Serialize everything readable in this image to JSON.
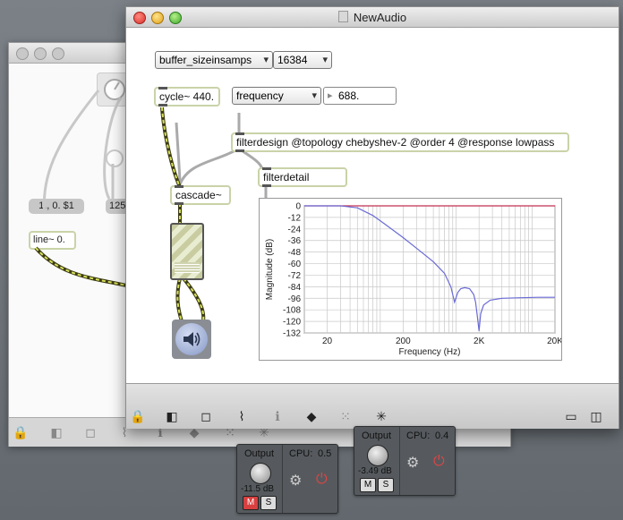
{
  "window": {
    "title": "NewAudio"
  },
  "back_patch": {
    "message_box": "1., 0. $1",
    "line_object": "line~ 0.",
    "partial_number": "125"
  },
  "objects": {
    "buffer_menu": "buffer_sizeinsamps",
    "buffer_value": "16384",
    "cycle": "cycle~ 440.",
    "freq_menu": "frequency",
    "freq_value": "688.",
    "filterdesign": "filterdesign @topology chebyshev-2 @order 4 @response lowpass",
    "filterdetail": "filterdetail",
    "cascade": "cascade~"
  },
  "chart_data": {
    "type": "line",
    "xlabel": "Frequency (Hz)",
    "ylabel": "Magnitude (dB)",
    "x_scale": "log",
    "xlim": [
      10,
      20000
    ],
    "ylim": [
      -132,
      0
    ],
    "x_ticks": [
      "20",
      "200",
      "2K",
      "20K"
    ],
    "x_tick_values": [
      20,
      200,
      2000,
      20000
    ],
    "y_ticks": [
      "0",
      "-12",
      "-24",
      "-36",
      "-48",
      "-60",
      "-72",
      "-84",
      "-96",
      "-108",
      "-120",
      "-132"
    ],
    "y_tick_values": [
      0,
      -12,
      -24,
      -36,
      -48,
      -60,
      -72,
      -84,
      -96,
      -108,
      -120,
      -132
    ],
    "grid": true,
    "series": [
      {
        "color": "#6a6ad6",
        "x": [
          10,
          30,
          50,
          80,
          120,
          200,
          300,
          500,
          700,
          850,
          950,
          1050,
          1150,
          1300,
          1500,
          1700,
          1800,
          1900,
          2000,
          2100,
          2300,
          2800,
          4000,
          7000,
          12000,
          20000
        ],
        "y": [
          0,
          0,
          -2,
          -10,
          -20,
          -33,
          -44,
          -58,
          -70,
          -84,
          -100,
          -90,
          -86,
          -85,
          -86,
          -92,
          -100,
          -115,
          -130,
          -112,
          -103,
          -98,
          -96,
          -95.5,
          -95,
          -95
        ]
      }
    ]
  },
  "toolbar_icons": [
    "lock-icon",
    "presentation-icon",
    "grid-icon",
    "debug-icon",
    "info-icon",
    "patcher-icon",
    "grid-dots-icon",
    "audio-toggle-icon",
    "sidebar-icon",
    "split-icon"
  ],
  "panels": [
    {
      "title": "Output",
      "cpu_label": "CPU:",
      "cpu_value": "0.5",
      "gain": "-11.5 dB",
      "mute": "M",
      "solo": "S"
    },
    {
      "title": "Output",
      "cpu_label": "CPU:",
      "cpu_value": "0.4",
      "gain": "-3.49 dB",
      "mute": "M",
      "solo": "S"
    }
  ]
}
